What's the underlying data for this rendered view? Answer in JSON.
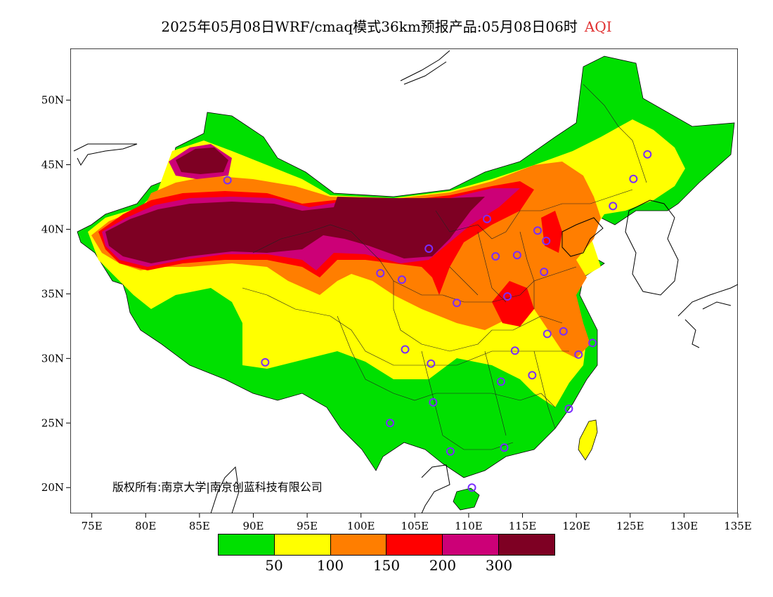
{
  "title": {
    "main": "2025年05月08日WRF/cmaq模式36km预报产品:05月08日06时",
    "variable": "AQI"
  },
  "map": {
    "lat_ticks": [
      "50N",
      "45N",
      "40N",
      "35N",
      "30N",
      "25N",
      "20N"
    ],
    "lon_ticks": [
      "75E",
      "80E",
      "85E",
      "90E",
      "95E",
      "100E",
      "105E",
      "110E",
      "115E",
      "120E",
      "125E",
      "130E",
      "135E"
    ],
    "extent": {
      "lon": [
        73,
        135
      ],
      "lat": [
        18,
        54
      ]
    }
  },
  "copyright": "版权所有:南京大学|南京创蓝科技有限公司",
  "legend": {
    "colors": [
      "#00e000",
      "#ffff00",
      "#ff7e00",
      "#ff0000",
      "#cc0077",
      "#7e0023"
    ],
    "labels": [
      "50",
      "100",
      "150",
      "200",
      "300"
    ]
  },
  "stations": [
    [
      87.6,
      43.8
    ],
    [
      91.1,
      29.7
    ],
    [
      101.8,
      36.6
    ],
    [
      103.8,
      36.1
    ],
    [
      106.3,
      38.5
    ],
    [
      104.1,
      30.7
    ],
    [
      106.5,
      29.6
    ],
    [
      106.7,
      26.6
    ],
    [
      102.7,
      25.0
    ],
    [
      108.3,
      22.8
    ],
    [
      110.3,
      20.0
    ],
    [
      113.3,
      23.1
    ],
    [
      113.0,
      28.2
    ],
    [
      114.3,
      30.6
    ],
    [
      117.3,
      31.9
    ],
    [
      115.9,
      28.7
    ],
    [
      119.3,
      26.1
    ],
    [
      120.2,
      30.3
    ],
    [
      121.5,
      31.2
    ],
    [
      118.8,
      32.1
    ],
    [
      117.0,
      36.7
    ],
    [
      113.6,
      34.8
    ],
    [
      108.9,
      34.3
    ],
    [
      112.5,
      37.9
    ],
    [
      114.5,
      38.0
    ],
    [
      116.4,
      39.9
    ],
    [
      117.2,
      39.1
    ],
    [
      111.7,
      40.8
    ],
    [
      123.4,
      41.8
    ],
    [
      125.3,
      43.9
    ],
    [
      126.6,
      45.8
    ]
  ]
}
